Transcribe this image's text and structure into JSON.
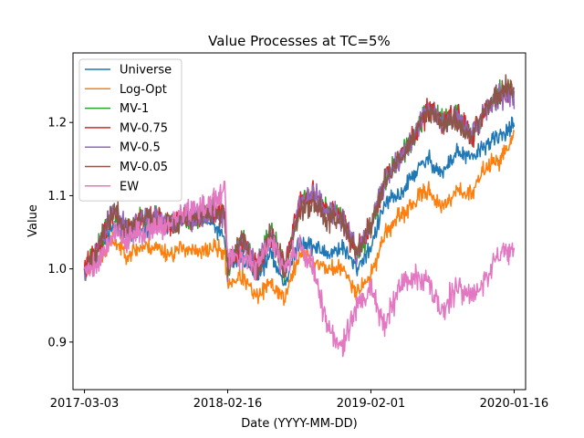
{
  "chart_data": {
    "type": "line",
    "title": "Value Processes at TC=5%",
    "xlabel": "Date (YYYY-MM-DD)",
    "ylabel": "Value",
    "xlim": [
      -0.08,
      3.08
    ],
    "ylim": [
      0.835,
      1.295
    ],
    "xticks": [
      {
        "pos": 0,
        "label": "2017-03-03"
      },
      {
        "pos": 1,
        "label": "2018-02-16"
      },
      {
        "pos": 2,
        "label": "2019-02-01"
      },
      {
        "pos": 3,
        "label": "2020-01-16"
      }
    ],
    "yticks": [
      {
        "value": 0.9,
        "label": "0.9"
      },
      {
        "value": 1.0,
        "label": "1.0"
      },
      {
        "value": 1.1,
        "label": "1.1"
      },
      {
        "value": 1.2,
        "label": "1.2"
      }
    ],
    "x_keypoints": [
      0,
      0.1,
      0.2,
      0.3,
      0.4,
      0.5,
      0.6,
      0.7,
      0.8,
      0.9,
      0.98,
      1.0,
      1.1,
      1.2,
      1.3,
      1.4,
      1.5,
      1.6,
      1.7,
      1.8,
      1.9,
      2.0,
      2.1,
      2.2,
      2.3,
      2.4,
      2.5,
      2.6,
      2.7,
      2.8,
      2.9,
      3.0
    ],
    "legend_position": "upper-left",
    "series": [
      {
        "name": "Universe",
        "color": "#1f77b4",
        "noise": 0.006,
        "seed": 11,
        "values": [
          1.0,
          1.02,
          1.06,
          1.04,
          1.05,
          1.06,
          1.06,
          1.07,
          1.07,
          1.06,
          1.04,
          1.0,
          1.02,
          0.99,
          1.02,
          0.98,
          1.04,
          1.03,
          1.02,
          1.03,
          1.0,
          1.03,
          1.09,
          1.1,
          1.13,
          1.15,
          1.13,
          1.16,
          1.15,
          1.17,
          1.18,
          1.2
        ]
      },
      {
        "name": "Log-Opt",
        "color": "#ff7f0e",
        "noise": 0.006,
        "seed": 23,
        "values": [
          1.0,
          1.01,
          1.04,
          1.02,
          1.03,
          1.03,
          1.02,
          1.03,
          1.02,
          1.03,
          1.02,
          0.98,
          0.99,
          0.96,
          0.98,
          0.96,
          1.02,
          1.01,
          1.0,
          1.0,
          0.97,
          0.99,
          1.05,
          1.07,
          1.09,
          1.11,
          1.08,
          1.11,
          1.1,
          1.14,
          1.15,
          1.18
        ]
      },
      {
        "name": "MV-1",
        "color": "#2ca02c",
        "noise": 0.008,
        "seed": 37,
        "values": [
          1.0,
          1.03,
          1.08,
          1.05,
          1.07,
          1.07,
          1.06,
          1.07,
          1.07,
          1.08,
          1.07,
          1.0,
          1.04,
          1.0,
          1.05,
          1.0,
          1.09,
          1.1,
          1.08,
          1.07,
          1.02,
          1.06,
          1.12,
          1.15,
          1.18,
          1.22,
          1.2,
          1.21,
          1.18,
          1.22,
          1.24,
          1.24
        ]
      },
      {
        "name": "MV-0.75",
        "color": "#d62728",
        "noise": 0.008,
        "seed": 41,
        "values": [
          1.0,
          1.03,
          1.08,
          1.05,
          1.07,
          1.07,
          1.06,
          1.07,
          1.07,
          1.08,
          1.07,
          1.0,
          1.04,
          1.0,
          1.05,
          1.0,
          1.09,
          1.1,
          1.08,
          1.07,
          1.02,
          1.06,
          1.12,
          1.15,
          1.18,
          1.22,
          1.2,
          1.21,
          1.18,
          1.22,
          1.24,
          1.24
        ]
      },
      {
        "name": "MV-0.5",
        "color": "#9467bd",
        "noise": 0.008,
        "seed": 53,
        "values": [
          1.0,
          1.03,
          1.08,
          1.05,
          1.07,
          1.07,
          1.06,
          1.07,
          1.07,
          1.08,
          1.07,
          1.0,
          1.04,
          1.0,
          1.05,
          1.0,
          1.09,
          1.1,
          1.08,
          1.07,
          1.02,
          1.06,
          1.12,
          1.15,
          1.18,
          1.22,
          1.2,
          1.21,
          1.18,
          1.22,
          1.24,
          1.23
        ]
      },
      {
        "name": "MV-0.05",
        "color": "#8c564b",
        "noise": 0.008,
        "seed": 67,
        "values": [
          1.0,
          1.03,
          1.08,
          1.05,
          1.07,
          1.07,
          1.06,
          1.07,
          1.07,
          1.08,
          1.07,
          1.0,
          1.04,
          1.0,
          1.05,
          1.0,
          1.08,
          1.09,
          1.07,
          1.07,
          1.02,
          1.06,
          1.12,
          1.15,
          1.18,
          1.22,
          1.2,
          1.2,
          1.18,
          1.22,
          1.24,
          1.25
        ]
      },
      {
        "name": "EW",
        "color": "#e377c2",
        "noise": 0.009,
        "seed": 79,
        "values": [
          1.0,
          1.01,
          1.05,
          1.04,
          1.05,
          1.06,
          1.06,
          1.08,
          1.08,
          1.09,
          1.11,
          1.01,
          1.02,
          1.0,
          1.04,
          1.0,
          1.03,
          1.0,
          0.92,
          0.89,
          0.95,
          0.97,
          0.92,
          0.98,
          0.99,
          0.98,
          0.94,
          0.98,
          0.96,
          0.99,
          1.02,
          1.03
        ]
      }
    ]
  }
}
